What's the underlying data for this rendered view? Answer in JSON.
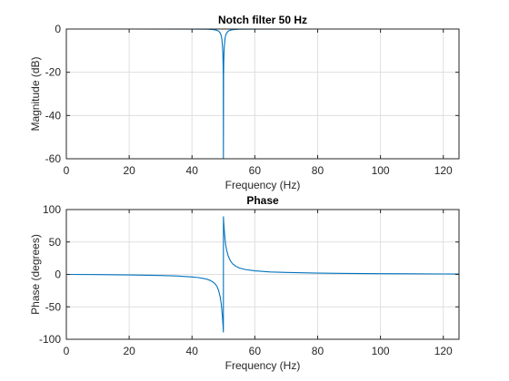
{
  "colors": {
    "line": "#0072BD",
    "grid": "#DFDFDF",
    "axis": "#262626",
    "background": "#FFFFFF"
  },
  "chart_data": [
    {
      "type": "line",
      "title": "Notch filter 50 Hz",
      "xlabel": "Frequency (Hz)",
      "ylabel": "Magnitude (dB)",
      "xlim": [
        0,
        125
      ],
      "ylim": [
        -60,
        0
      ],
      "xticks": [
        0,
        20,
        40,
        60,
        80,
        100,
        120
      ],
      "yticks": [
        -60,
        -40,
        -20,
        0
      ],
      "grid": true,
      "series": [
        {
          "x": [
            0,
            20,
            40,
            45,
            47,
            48,
            48.5,
            49,
            49.3,
            49.5,
            49.7,
            49.8,
            49.9,
            49.95,
            50,
            50.05,
            50.1,
            50.2,
            50.3,
            50.5,
            50.7,
            51,
            51.5,
            52,
            53,
            55,
            60,
            80,
            100,
            125
          ],
          "y": [
            0,
            0,
            -0.03,
            -0.1,
            -0.3,
            -0.6,
            -1.0,
            -1.9,
            -3.0,
            -4.6,
            -7.9,
            -10.6,
            -15.9,
            -21.9,
            -60,
            -21.9,
            -15.9,
            -10.6,
            -7.9,
            -4.6,
            -2.9,
            -1.9,
            -1.0,
            -0.6,
            -0.3,
            -0.1,
            -0.03,
            0,
            0,
            0
          ]
        }
      ]
    },
    {
      "type": "line",
      "title": "Phase",
      "xlabel": "Frequency (Hz)",
      "ylabel": "Phase (degrees)",
      "xlim": [
        0,
        125
      ],
      "ylim": [
        -100,
        100
      ],
      "xticks": [
        0,
        20,
        40,
        60,
        80,
        100,
        120
      ],
      "yticks": [
        -100,
        -50,
        0,
        50,
        100
      ],
      "grid": true,
      "series": [
        {
          "x": [
            0,
            10,
            20,
            30,
            35,
            40,
            42,
            44,
            45,
            46,
            47,
            47.5,
            48,
            48.5,
            49,
            49.3,
            49.5,
            49.7,
            49.9,
            49.99,
            50.01,
            50.1,
            50.3,
            50.5,
            50.7,
            51,
            51.5,
            52,
            52.5,
            53,
            54,
            55,
            57,
            60,
            65,
            70,
            80,
            90,
            100,
            110,
            120,
            125
          ],
          "y": [
            0,
            -0.3,
            -0.8,
            -1.6,
            -2.4,
            -3.9,
            -4.9,
            -6.5,
            -7.8,
            -9.7,
            -12.9,
            -15.4,
            -19.2,
            -25.2,
            -35.4,
            -45,
            -55,
            -66,
            -80,
            -89,
            89,
            80,
            66,
            55,
            46,
            38,
            29,
            23,
            19,
            16,
            12.5,
            10,
            7.5,
            5.5,
            3.8,
            3.0,
            2.0,
            1.5,
            1.2,
            0.9,
            0.7,
            0.6
          ]
        }
      ]
    }
  ]
}
